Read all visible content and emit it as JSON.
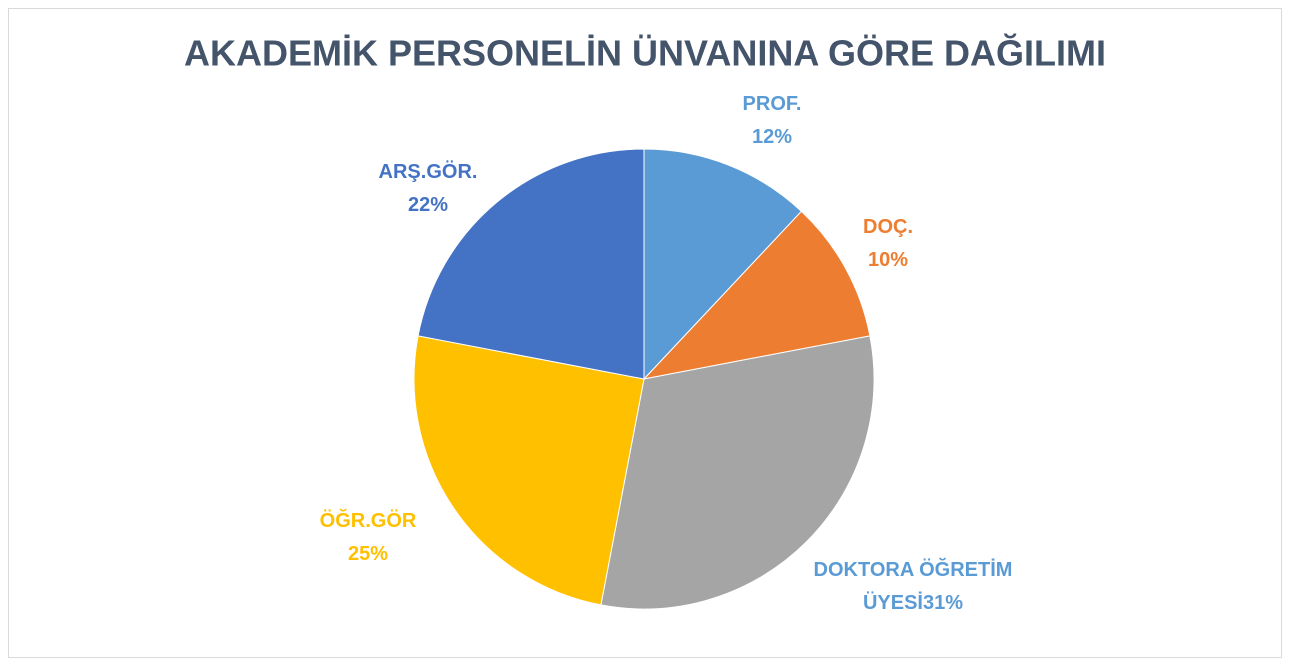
{
  "chart_data": {
    "type": "pie",
    "title": "AKADEMİK PERSONELİN ÜNVANINA GÖRE DAĞILIMI",
    "categories": [
      "PROF.",
      "DOÇ.",
      "DOKTORA ÖĞRETİM ÜYESİ",
      "ÖĞR.GÖR",
      "ARŞ.GÖR."
    ],
    "values": [
      12,
      10,
      31,
      25,
      22
    ],
    "value_labels": [
      "12%",
      "10%",
      "31%",
      "25%",
      "22%"
    ],
    "colors": [
      "#5b9bd5",
      "#ed7d31",
      "#a5a5a5",
      "#ffc000",
      "#4472c4"
    ],
    "label_colors": [
      "#5b9bd5",
      "#ed7d31",
      "#5b9bd5",
      "#ffc000",
      "#4472c4"
    ]
  }
}
